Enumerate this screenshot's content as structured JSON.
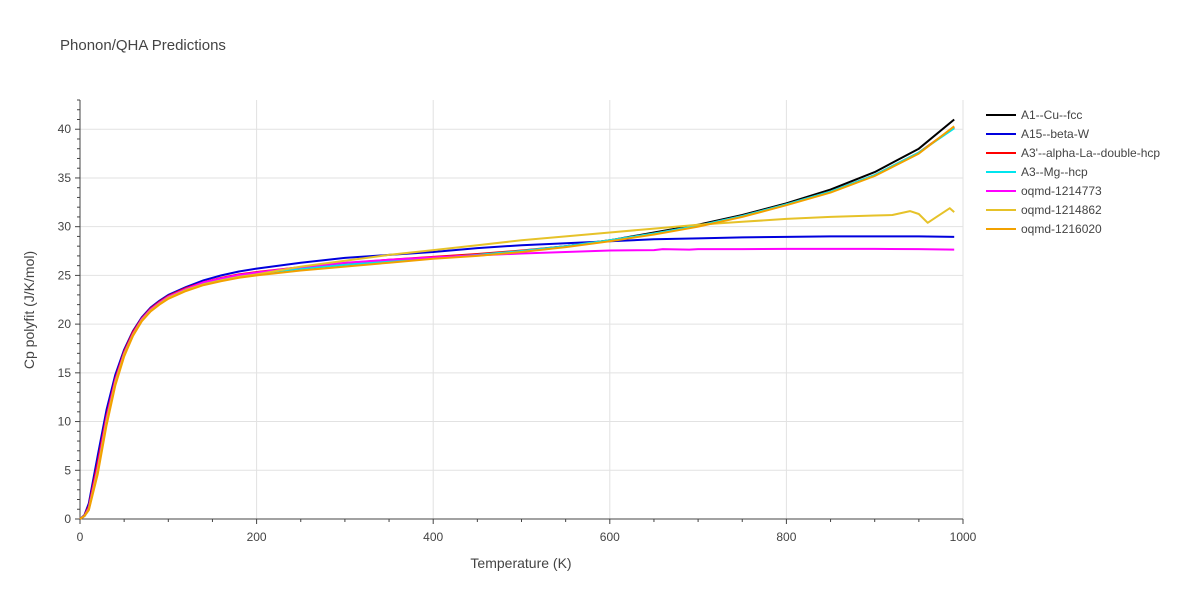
{
  "chart_data": {
    "type": "line",
    "title": "Phonon/QHA Predictions",
    "xlabel": "Temperature (K)",
    "ylabel": "Cp polyfit (J/K/mol)",
    "xlim": [
      0,
      1000
    ],
    "ylim": [
      0,
      43
    ],
    "xticks": [
      0,
      200,
      400,
      600,
      800,
      1000
    ],
    "yticks": [
      0,
      5,
      10,
      15,
      20,
      25,
      30,
      35,
      40
    ],
    "grid": true,
    "legend_position": "right",
    "series": [
      {
        "name": "A1--Cu--fcc",
        "color": "#000000",
        "x": [
          0,
          5,
          10,
          20,
          30,
          40,
          50,
          60,
          70,
          80,
          90,
          100,
          120,
          140,
          160,
          180,
          200,
          250,
          300,
          350,
          400,
          450,
          500,
          550,
          600,
          650,
          700,
          750,
          800,
          850,
          900,
          950,
          990
        ],
        "y": [
          0,
          0.3,
          1.0,
          5.0,
          10.0,
          14.0,
          17.0,
          19.0,
          20.5,
          21.5,
          22.2,
          22.8,
          23.6,
          24.2,
          24.6,
          24.95,
          25.2,
          25.7,
          26.1,
          26.4,
          26.8,
          27.1,
          27.5,
          28.0,
          28.6,
          29.4,
          30.2,
          31.2,
          32.4,
          33.8,
          35.6,
          38.0,
          41.0
        ]
      },
      {
        "name": "A15--beta-W",
        "color": "#0000dd",
        "x": [
          0,
          5,
          10,
          20,
          30,
          40,
          50,
          60,
          70,
          80,
          90,
          100,
          120,
          140,
          160,
          180,
          200,
          250,
          300,
          350,
          400,
          450,
          500,
          550,
          600,
          650,
          700,
          750,
          800,
          850,
          900,
          950,
          990
        ],
        "y": [
          0,
          0.4,
          1.6,
          6.5,
          11.2,
          14.8,
          17.4,
          19.3,
          20.7,
          21.7,
          22.4,
          23.0,
          23.8,
          24.5,
          25.0,
          25.4,
          25.7,
          26.3,
          26.8,
          27.1,
          27.4,
          27.8,
          28.1,
          28.3,
          28.5,
          28.7,
          28.8,
          28.9,
          28.95,
          29.0,
          29.0,
          29.0,
          28.95
        ]
      },
      {
        "name": "A3'--alpha-La--double-hcp",
        "color": "#ff0000",
        "x": [
          0,
          5,
          10,
          20,
          30,
          40,
          50,
          60,
          70,
          80,
          90,
          100,
          120,
          140,
          160,
          180,
          200,
          250,
          300,
          350,
          400,
          450,
          500,
          550,
          600,
          650,
          700,
          750,
          800,
          850,
          900,
          950,
          990
        ],
        "y": [
          0,
          0.35,
          1.3,
          5.8,
          10.6,
          14.4,
          17.2,
          19.2,
          20.6,
          21.6,
          22.3,
          22.9,
          23.7,
          24.3,
          24.75,
          25.1,
          25.35,
          25.85,
          26.25,
          26.6,
          26.9,
          27.2,
          27.55,
          28.0,
          28.6,
          29.3,
          30.1,
          31.1,
          32.3,
          33.6,
          35.3,
          37.6,
          40.2
        ]
      },
      {
        "name": "A3--Mg--hcp",
        "color": "#00e5ee",
        "x": [
          0,
          5,
          10,
          20,
          30,
          40,
          50,
          60,
          70,
          80,
          90,
          100,
          120,
          140,
          160,
          180,
          200,
          250,
          300,
          350,
          400,
          450,
          500,
          550,
          600,
          650,
          700,
          750,
          800,
          850,
          900,
          950,
          990
        ],
        "y": [
          0,
          0.3,
          1.1,
          5.2,
          10.2,
          14.1,
          17.0,
          19.0,
          20.5,
          21.5,
          22.2,
          22.8,
          23.6,
          24.2,
          24.6,
          24.95,
          25.2,
          25.7,
          26.1,
          26.45,
          26.8,
          27.1,
          27.5,
          28.0,
          28.6,
          29.3,
          30.1,
          31.1,
          32.3,
          33.6,
          35.3,
          37.6,
          40.1
        ]
      },
      {
        "name": "oqmd-1214773",
        "color": "#ff00ff",
        "x": [
          0,
          5,
          10,
          20,
          30,
          40,
          50,
          60,
          70,
          80,
          90,
          100,
          120,
          140,
          160,
          180,
          200,
          250,
          300,
          350,
          400,
          450,
          500,
          550,
          600,
          650,
          660,
          690,
          700,
          750,
          800,
          850,
          900,
          950,
          990
        ],
        "y": [
          0,
          0.3,
          1.1,
          5.3,
          10.3,
          14.2,
          17.0,
          19.0,
          20.5,
          21.5,
          22.2,
          22.8,
          23.6,
          24.3,
          24.7,
          25.05,
          25.3,
          25.85,
          26.3,
          26.6,
          26.85,
          27.05,
          27.25,
          27.4,
          27.55,
          27.6,
          27.7,
          27.65,
          27.7,
          27.7,
          27.72,
          27.72,
          27.72,
          27.7,
          27.65
        ]
      },
      {
        "name": "oqmd-1214862",
        "color": "#e6c229",
        "x": [
          0,
          5,
          10,
          20,
          30,
          40,
          50,
          60,
          70,
          80,
          90,
          100,
          120,
          140,
          160,
          180,
          200,
          250,
          300,
          350,
          400,
          450,
          500,
          550,
          600,
          650,
          700,
          750,
          800,
          850,
          900,
          920,
          940,
          950,
          960,
          970,
          985,
          990
        ],
        "y": [
          0,
          0.3,
          1.0,
          5.0,
          10.0,
          14.0,
          16.9,
          18.9,
          20.4,
          21.4,
          22.1,
          22.7,
          23.5,
          24.1,
          24.5,
          24.85,
          25.1,
          25.9,
          26.5,
          27.1,
          27.6,
          28.1,
          28.6,
          29.0,
          29.4,
          29.8,
          30.2,
          30.5,
          30.8,
          31.0,
          31.15,
          31.2,
          31.6,
          31.3,
          30.4,
          31.0,
          31.9,
          31.5
        ]
      },
      {
        "name": "oqmd-1216020",
        "color": "#f2a100",
        "x": [
          0,
          5,
          10,
          20,
          30,
          40,
          50,
          60,
          70,
          80,
          90,
          100,
          120,
          140,
          160,
          180,
          200,
          250,
          300,
          350,
          400,
          450,
          500,
          550,
          600,
          650,
          700,
          750,
          800,
          850,
          900,
          950,
          990
        ],
        "y": [
          0,
          0.3,
          0.9,
          4.6,
          9.6,
          13.7,
          16.7,
          18.8,
          20.3,
          21.3,
          22.0,
          22.6,
          23.4,
          24.0,
          24.4,
          24.75,
          25.0,
          25.5,
          25.9,
          26.3,
          26.7,
          27.0,
          27.4,
          27.9,
          28.5,
          29.2,
          30.0,
          31.0,
          32.2,
          33.5,
          35.2,
          37.5,
          40.3
        ]
      }
    ]
  }
}
